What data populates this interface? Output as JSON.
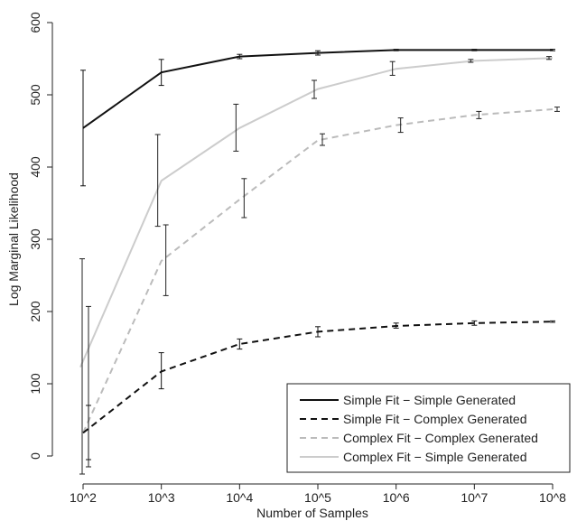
{
  "chart_data": {
    "type": "line",
    "xlabel": "Number of Samples",
    "ylabel": "Log Marginal Likelihood",
    "x_tick_labels": [
      "10^2",
      "10^3",
      "10^4",
      "10^5",
      "10^6",
      "10^7",
      "10^8"
    ],
    "y_ticks": [
      0,
      100,
      200,
      300,
      400,
      500,
      600
    ],
    "ylim": [
      -15,
      600
    ],
    "x_scale": "log10",
    "legend_position": "bottom-right",
    "series": [
      {
        "name": "Simple Fit − Simple Generated",
        "color": "#111111",
        "dash": "solid",
        "points": [
          {
            "x": 100,
            "y": 454,
            "lo": 374,
            "hi": 534
          },
          {
            "x": 1000,
            "y": 531,
            "lo": 513,
            "hi": 549
          },
          {
            "x": 10000,
            "y": 553,
            "lo": 550,
            "hi": 556
          },
          {
            "x": 100000,
            "y": 558,
            "lo": 555,
            "hi": 561
          },
          {
            "x": 1000000,
            "y": 562,
            "lo": 561,
            "hi": 563
          },
          {
            "x": 10000000,
            "y": 562,
            "lo": 561,
            "hi": 563
          },
          {
            "x": 100000000,
            "y": 562,
            "lo": 561,
            "hi": 563
          }
        ]
      },
      {
        "name": "Simple Fit − Complex Generated",
        "color": "#111111",
        "dash": "dashed",
        "points": [
          {
            "x": 100,
            "y": 32,
            "lo": -5,
            "hi": 70
          },
          {
            "x": 1000,
            "y": 117,
            "lo": 93,
            "hi": 143
          },
          {
            "x": 10000,
            "y": 155,
            "lo": 148,
            "hi": 162
          },
          {
            "x": 100000,
            "y": 172,
            "lo": 165,
            "hi": 179
          },
          {
            "x": 1000000,
            "y": 180,
            "lo": 177,
            "hi": 184
          },
          {
            "x": 10000000,
            "y": 184,
            "lo": 181,
            "hi": 187
          },
          {
            "x": 100000000,
            "y": 186,
            "lo": 185,
            "hi": 187
          }
        ]
      },
      {
        "name": "Complex Fit − Complex Generated",
        "color": "#bbbbbb",
        "dash": "dashed",
        "points": [
          {
            "x": 100,
            "y": 32,
            "lo": -15,
            "hi": 207
          },
          {
            "x": 1000,
            "y": 270,
            "lo": 222,
            "hi": 320
          },
          {
            "x": 10000,
            "y": 355,
            "lo": 330,
            "hi": 384
          },
          {
            "x": 100000,
            "y": 437,
            "lo": 430,
            "hi": 446
          },
          {
            "x": 1000000,
            "y": 458,
            "lo": 448,
            "hi": 468
          },
          {
            "x": 10000000,
            "y": 472,
            "lo": 467,
            "hi": 477
          },
          {
            "x": 100000000,
            "y": 480,
            "lo": 477,
            "hi": 483
          }
        ]
      },
      {
        "name": "Complex Fit − Simple Generated",
        "color": "#cccccc",
        "dash": "solid",
        "points": [
          {
            "x": 100,
            "y": 123,
            "lo": -25,
            "hi": 273
          },
          {
            "x": 1000,
            "y": 381,
            "lo": 318,
            "hi": 445
          },
          {
            "x": 10000,
            "y": 454,
            "lo": 422,
            "hi": 487
          },
          {
            "x": 100000,
            "y": 508,
            "lo": 495,
            "hi": 520
          },
          {
            "x": 1000000,
            "y": 536,
            "lo": 527,
            "hi": 546
          },
          {
            "x": 10000000,
            "y": 547,
            "lo": 545,
            "hi": 549
          },
          {
            "x": 100000000,
            "y": 551,
            "lo": 549,
            "hi": 553
          }
        ]
      }
    ]
  }
}
